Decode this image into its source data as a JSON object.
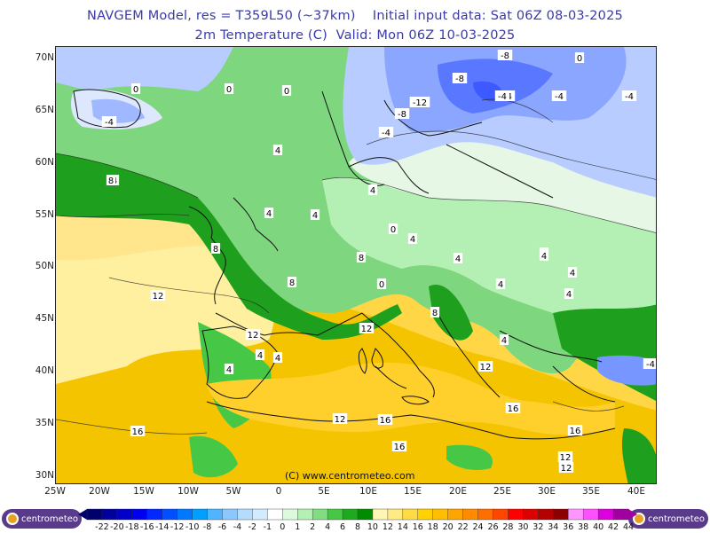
{
  "header": {
    "line1": "NAVGEM Model, res = T359L50 (~37km)    Initial input data: Sat 06Z 08-03-2025",
    "line2": "2m Temperature (C)  Valid: Mon 06Z 10-03-2025"
  },
  "map": {
    "credit": "(C) www.centrometeo.com",
    "lat_labels": [
      "70N",
      "65N",
      "60N",
      "55N",
      "50N",
      "45N",
      "40N",
      "35N",
      "30N"
    ],
    "lon_labels": [
      "25W",
      "20W",
      "15W",
      "10W",
      "5W",
      "0",
      "5E",
      "10E",
      "15E",
      "20E",
      "25E",
      "30E",
      "35E",
      "40E"
    ],
    "contour_labels": [
      "-8",
      "-8",
      "-12",
      "-8",
      "-4",
      "-4",
      "-4",
      "-4",
      "0",
      "0",
      "0",
      "0",
      "-4",
      "-4",
      "4",
      "4",
      "4",
      "4",
      "4",
      "4",
      "4",
      "4",
      "8",
      "8",
      "8",
      "8",
      "12",
      "12",
      "12",
      "16",
      "16",
      "16",
      "16",
      "12",
      "12",
      "4",
      "8",
      "4",
      "-4",
      "12",
      "4",
      "4",
      "4",
      "4",
      "16",
      "12",
      "0",
      "0",
      "4",
      "4"
    ]
  },
  "colorbar": {
    "ticks": [
      "-22",
      "-20",
      "-18",
      "-16",
      "-14",
      "-12",
      "-10",
      "-8",
      "-6",
      "-4",
      "-2",
      "-1",
      "0",
      "1",
      "2",
      "4",
      "6",
      "8",
      "10",
      "12",
      "14",
      "16",
      "18",
      "20",
      "22",
      "24",
      "26",
      "28",
      "30",
      "32",
      "34",
      "36",
      "38",
      "40",
      "42",
      "44"
    ],
    "colors": [
      "#00006e",
      "#00009b",
      "#0000c8",
      "#0000f0",
      "#0028ff",
      "#0050ff",
      "#0078ff",
      "#00a0ff",
      "#50b4ff",
      "#8cc8ff",
      "#b4dcff",
      "#d2ebff",
      "#ffffff",
      "#dcfadc",
      "#b4f0b4",
      "#82dc82",
      "#46c846",
      "#1eaa1e",
      "#008c00",
      "#fff5b4",
      "#ffeb82",
      "#ffdc46",
      "#ffd200",
      "#ffbe00",
      "#ffa500",
      "#ff8c00",
      "#ff6e00",
      "#ff4600",
      "#ff0000",
      "#dc0000",
      "#b40000",
      "#8c0000",
      "#ff96ff",
      "#ff50ff",
      "#dc00dc",
      "#a000a0"
    ],
    "logo_left": "centrometeo",
    "logo_right": "centrometeo"
  }
}
